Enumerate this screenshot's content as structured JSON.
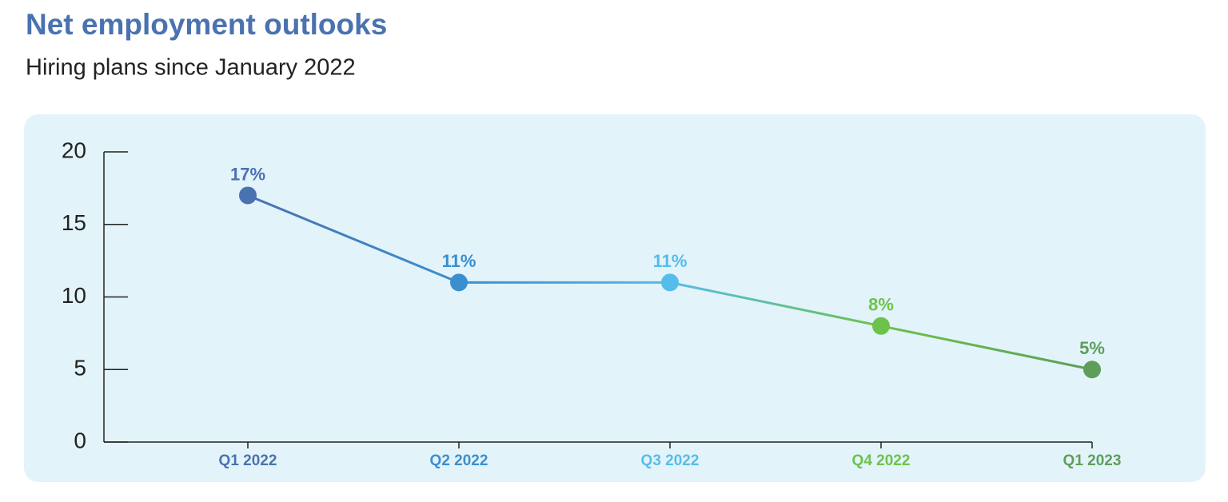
{
  "chart_data": {
    "type": "line",
    "title": "Net employment outlooks",
    "subtitle": "Hiring plans since January 2022",
    "categories": [
      "Q1 2022",
      "Q2 2022",
      "Q3 2022",
      "Q4 2022",
      "Q1 2023"
    ],
    "values": [
      17,
      11,
      11,
      8,
      5
    ],
    "value_labels": [
      "17%",
      "11%",
      "11%",
      "8%",
      "5%"
    ],
    "colors": [
      "#4a72b0",
      "#3a8fcf",
      "#55bdea",
      "#6cc24a",
      "#5e9e5a"
    ],
    "ylim": [
      0,
      20
    ],
    "yticks": [
      0,
      5,
      10,
      15,
      20
    ],
    "grid": false
  }
}
